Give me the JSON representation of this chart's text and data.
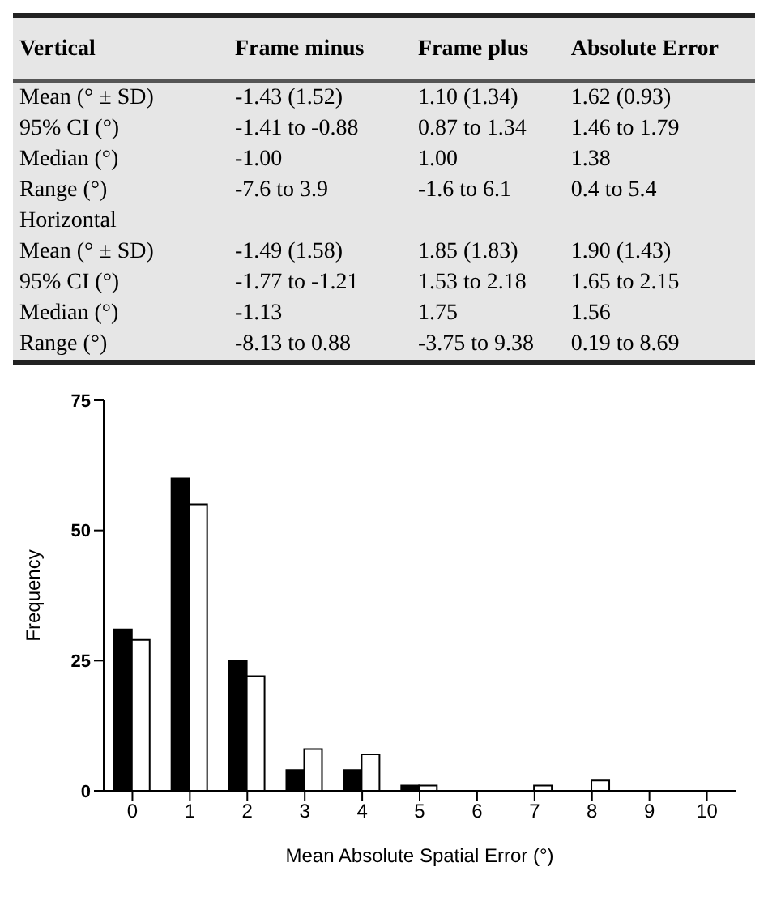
{
  "chart_data": [
    {
      "type": "other",
      "categories": [
        "Vertical",
        "Frame minus",
        "Frame plus",
        "Absolute Error"
      ],
      "y_categories": [
        "Mean (° ± SD)",
        "95% CI (°)",
        "Median (°)",
        "Range (°)",
        "Horizontal",
        "Mean (° ± SD)",
        "95% CI (°)",
        "Median (°)",
        "Range (°)"
      ],
      "cell_labels": [
        [
          "-1.43 (1.52)",
          "1.10 (1.34)",
          "1.62 (0.93)"
        ],
        [
          "-1.41 to -0.88",
          "0.87 to 1.34",
          "1.46 to 1.79"
        ],
        [
          "-1.00",
          "1.00",
          "1.38"
        ],
        [
          "-7.6 to 3.9",
          "-1.6 to 6.1",
          "0.4 to 5.4"
        ],
        [
          null,
          null,
          null
        ],
        [
          "-1.49 (1.58)",
          "1.85 (1.83)",
          "1.90 (1.43)"
        ],
        [
          "-1.77 to -1.21",
          "1.53 to 2.18",
          "1.65 to 2.15"
        ],
        [
          "-1.13",
          "1.75",
          "1.56"
        ],
        [
          "-8.13 to 0.88",
          "-3.75 to 9.38",
          "0.19 to 8.69"
        ]
      ]
    },
    {
      "type": "bar",
      "xlabel": "Mean Absolute Spatial Error (°)",
      "ylabel": "Frequency",
      "categories": [
        "0",
        "1",
        "2",
        "3",
        "4",
        "5",
        "6",
        "7",
        "8",
        "9",
        "10"
      ],
      "series": [
        {
          "color": "#000000",
          "values": [
            31,
            60,
            25,
            4,
            4,
            1,
            0,
            0,
            0,
            0,
            0
          ]
        },
        {
          "color": "#ffffff",
          "values": [
            29,
            55,
            22,
            8,
            7,
            1,
            0,
            1,
            2,
            0,
            0
          ]
        }
      ],
      "ylim": [
        0,
        75
      ],
      "yticks": [
        0,
        25,
        50,
        75
      ],
      "grid": false,
      "legend": false
    }
  ]
}
